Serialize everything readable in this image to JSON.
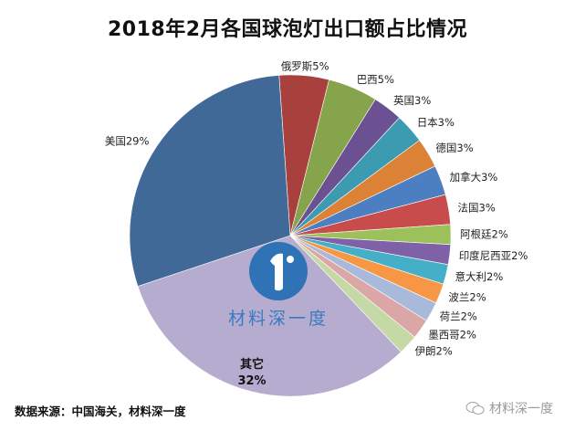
{
  "title": "2018年2月各国球泡灯出口额占比情况",
  "source": "数据来源：中国海关，材料深一度",
  "watermark": "材料深一度",
  "logo": {
    "text": "材料深一度",
    "color": "#2f72b5"
  },
  "chart_data": {
    "type": "pie",
    "title": "2018年2月各国球泡灯出口额占比情况",
    "start_angle_deg": -4,
    "direction": "clockwise",
    "slices": [
      {
        "name": "俄罗斯",
        "label": "俄罗斯5%",
        "value": 5,
        "color": "#a8403d"
      },
      {
        "name": "巴西",
        "label": "巴西5%",
        "value": 5,
        "color": "#85a44b"
      },
      {
        "name": "英国",
        "label": "英国3%",
        "value": 3,
        "color": "#6b5191"
      },
      {
        "name": "日本",
        "label": "日本3%",
        "value": 3,
        "color": "#3d9bb1"
      },
      {
        "name": "德国",
        "label": "德国3%",
        "value": 3,
        "color": "#db8237"
      },
      {
        "name": "加拿大",
        "label": "加拿大3%",
        "value": 3,
        "color": "#4c7fc2"
      },
      {
        "name": "法国",
        "label": "法国3%",
        "value": 3,
        "color": "#c94c4c"
      },
      {
        "name": "阿根廷",
        "label": "阿根廷2%",
        "value": 2,
        "color": "#9dc15a"
      },
      {
        "name": "印度尼西亚",
        "label": "印度尼西亚2%",
        "value": 2,
        "color": "#7f61a8"
      },
      {
        "name": "意大利",
        "label": "意大利2%",
        "value": 2,
        "color": "#44afc6"
      },
      {
        "name": "波兰",
        "label": "波兰2%",
        "value": 2,
        "color": "#f79645"
      },
      {
        "name": "荷兰",
        "label": "荷兰2%",
        "value": 2,
        "color": "#a9b9da"
      },
      {
        "name": "墨西哥",
        "label": "墨西哥2%",
        "value": 2,
        "color": "#dba7a6"
      },
      {
        "name": "伊朗",
        "label": "伊朗2%",
        "value": 2,
        "color": "#c4d9a6"
      },
      {
        "name": "其它",
        "label": "其它",
        "label2": "32%",
        "value": 32,
        "color": "#b6acd0",
        "inside": true
      },
      {
        "name": "美国",
        "label": "美国29%",
        "value": 29,
        "color": "#416998"
      }
    ]
  }
}
